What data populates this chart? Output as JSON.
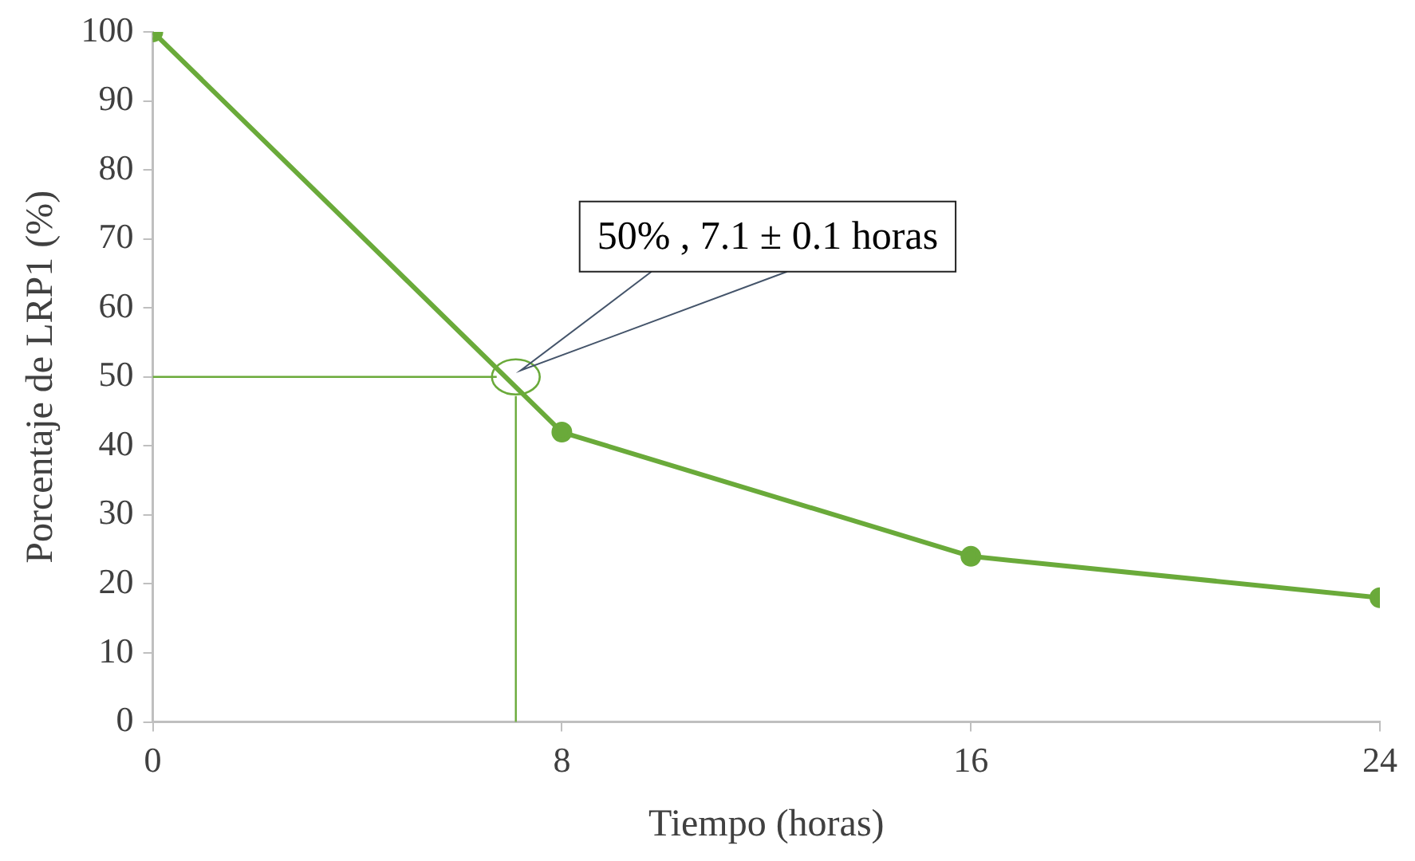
{
  "chart_data": {
    "type": "line",
    "xlabel": "Tiempo (horas)",
    "ylabel": "Porcentaje de LRP1 (%)",
    "x": [
      0,
      8,
      16,
      24
    ],
    "series": [
      {
        "color": "#6aaa3a",
        "values": [
          100,
          42,
          24,
          18
        ]
      }
    ],
    "xlim": [
      0,
      24
    ],
    "xticks": [
      0,
      8,
      16,
      24
    ],
    "ylim": [
      0,
      100
    ],
    "yticks": [
      0,
      10,
      20,
      30,
      40,
      50,
      60,
      70,
      80,
      90,
      100
    ],
    "grid": false,
    "legend": false,
    "marker": "circle",
    "line_style": "solid",
    "ref_lines": [
      {
        "axis": "x",
        "value": 7.1,
        "color": "#6aaa3a"
      },
      {
        "axis": "y",
        "value": 50,
        "color": "#6aaa3a"
      }
    ],
    "annotations": [
      "50% , 7.1 ± 0.1 horas"
    ]
  }
}
